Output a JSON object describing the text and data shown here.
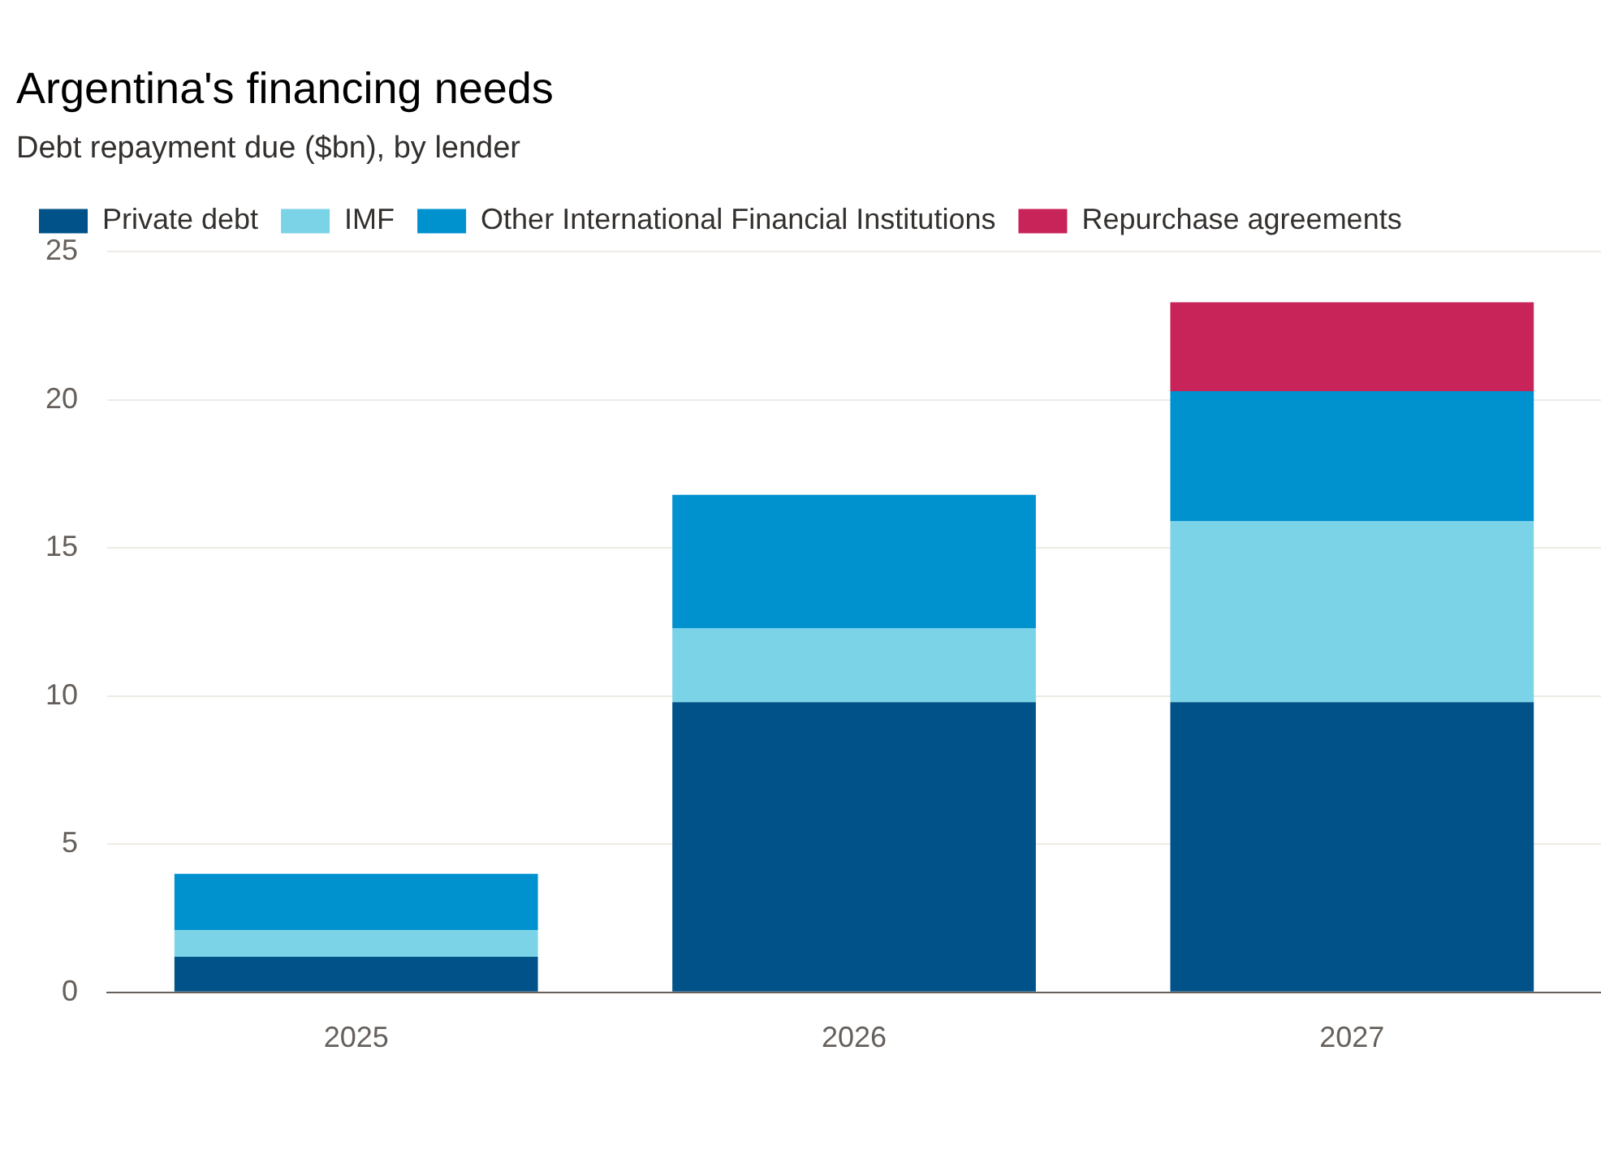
{
  "chart_data": {
    "type": "bar",
    "title": "Argentina's financing needs",
    "subtitle": "Debt repayment due ($bn), by lender",
    "categories": [
      "2025",
      "2026",
      "2027"
    ],
    "stacked": true,
    "series": [
      {
        "name": "Private debt",
        "color": "#005288",
        "values": [
          1.2,
          9.8,
          9.8
        ]
      },
      {
        "name": "IMF",
        "color": "#7ad3e6",
        "values": [
          0.9,
          2.5,
          6.1
        ]
      },
      {
        "name": "Other International Financial Institutions",
        "color": "#0091cf",
        "values": [
          1.9,
          4.5,
          4.4
        ]
      },
      {
        "name": "Repurchase agreements",
        "color": "#c8245a",
        "values": [
          null,
          null,
          3.0
        ]
      }
    ],
    "ylim": [
      0,
      25
    ],
    "yticks": [
      0,
      5,
      10,
      15,
      20,
      25
    ],
    "grid": "y",
    "legend": "top left"
  }
}
